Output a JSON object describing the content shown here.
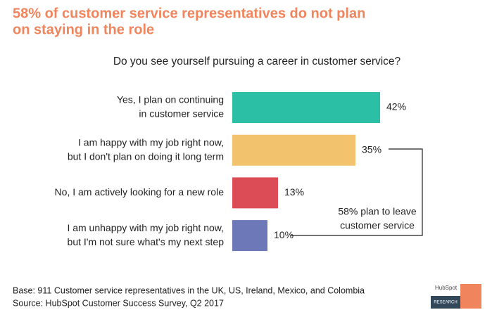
{
  "chart_data": {
    "type": "bar",
    "orientation": "horizontal",
    "title": [
      "58% of customer service representatives do not plan",
      "on staying in the role"
    ],
    "subtitle": "Do you see yourself pursuing a career in customer service?",
    "categories": [
      [
        "Yes, I plan on continuing",
        "in customer service"
      ],
      [
        "I am happy with my job right now,",
        "but I don't plan on doing it long term"
      ],
      [
        "No, I am actively looking for a new role"
      ],
      [
        "I am unhappy with my job right now,",
        "but I'm not sure what's my next step"
      ]
    ],
    "values": [
      42,
      35,
      13,
      10
    ],
    "value_labels": [
      "42%",
      "35%",
      "13%",
      "10%"
    ],
    "colors": [
      "#2bbfa5",
      "#f3c26d",
      "#dc4c56",
      "#6d78b9"
    ],
    "annotation": [
      "58% plan to leave",
      "customer service"
    ],
    "footer": [
      "Base: 911 Customer service representatives in the UK, US, Ireland, Mexico, and Colombia",
      "Source: HubSpot Customer Success Survey, Q2 2017"
    ],
    "logo": {
      "brand": "HubSpot",
      "label": "RESEARCH"
    }
  }
}
